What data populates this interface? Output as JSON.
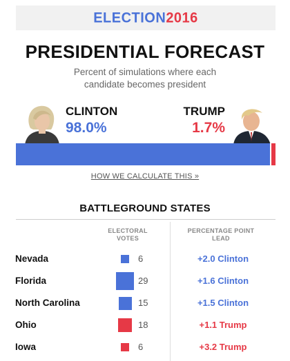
{
  "banner": {
    "word": "ELECTION",
    "year": "2016"
  },
  "header": {
    "title": "PRESIDENTIAL FORECAST",
    "subtitle": "Percent of simulations where each candidate becomes president"
  },
  "candidates": {
    "clinton": {
      "name": "CLINTON",
      "pct_label": "98.0%",
      "color": "#4a72d8"
    },
    "trump": {
      "name": "TRUMP",
      "pct_label": "1.7%",
      "color": "#e63946"
    }
  },
  "method_link": "HOW WE CALCULATE THIS »",
  "battleground": {
    "title": "BATTLEGROUND STATES",
    "votes_header": "ELECTORAL VOTES",
    "lead_header": "PERCENTAGE POINT LEAD"
  },
  "chart_data": [
    {
      "type": "bar",
      "orientation": "horizontal-stacked",
      "title": "PRESIDENTIAL FORECAST",
      "categories": [
        "CLINTON",
        "TRUMP"
      ],
      "values": [
        98.0,
        1.7
      ],
      "colors": [
        "#4a72d8",
        "#e63946"
      ],
      "xlim": [
        0,
        100
      ]
    },
    {
      "type": "table",
      "title": "BATTLEGROUND STATES",
      "columns": [
        "",
        "ELECTORAL VOTES",
        "PERCENTAGE POINT LEAD"
      ],
      "rows": [
        {
          "state": "Nevada",
          "votes": 6,
          "lead": "+2.0 Clinton",
          "leader": "Clinton",
          "margin": 2.0
        },
        {
          "state": "Florida",
          "votes": 29,
          "lead": "+1.6 Clinton",
          "leader": "Clinton",
          "margin": 1.6
        },
        {
          "state": "North Carolina",
          "votes": 15,
          "lead": "+1.5 Clinton",
          "leader": "Clinton",
          "margin": 1.5
        },
        {
          "state": "Ohio",
          "votes": 18,
          "lead": "+1.1 Trump",
          "leader": "Trump",
          "margin": 1.1
        },
        {
          "state": "Iowa",
          "votes": 6,
          "lead": "+3.2 Trump",
          "leader": "Trump",
          "margin": 3.2
        }
      ]
    }
  ]
}
